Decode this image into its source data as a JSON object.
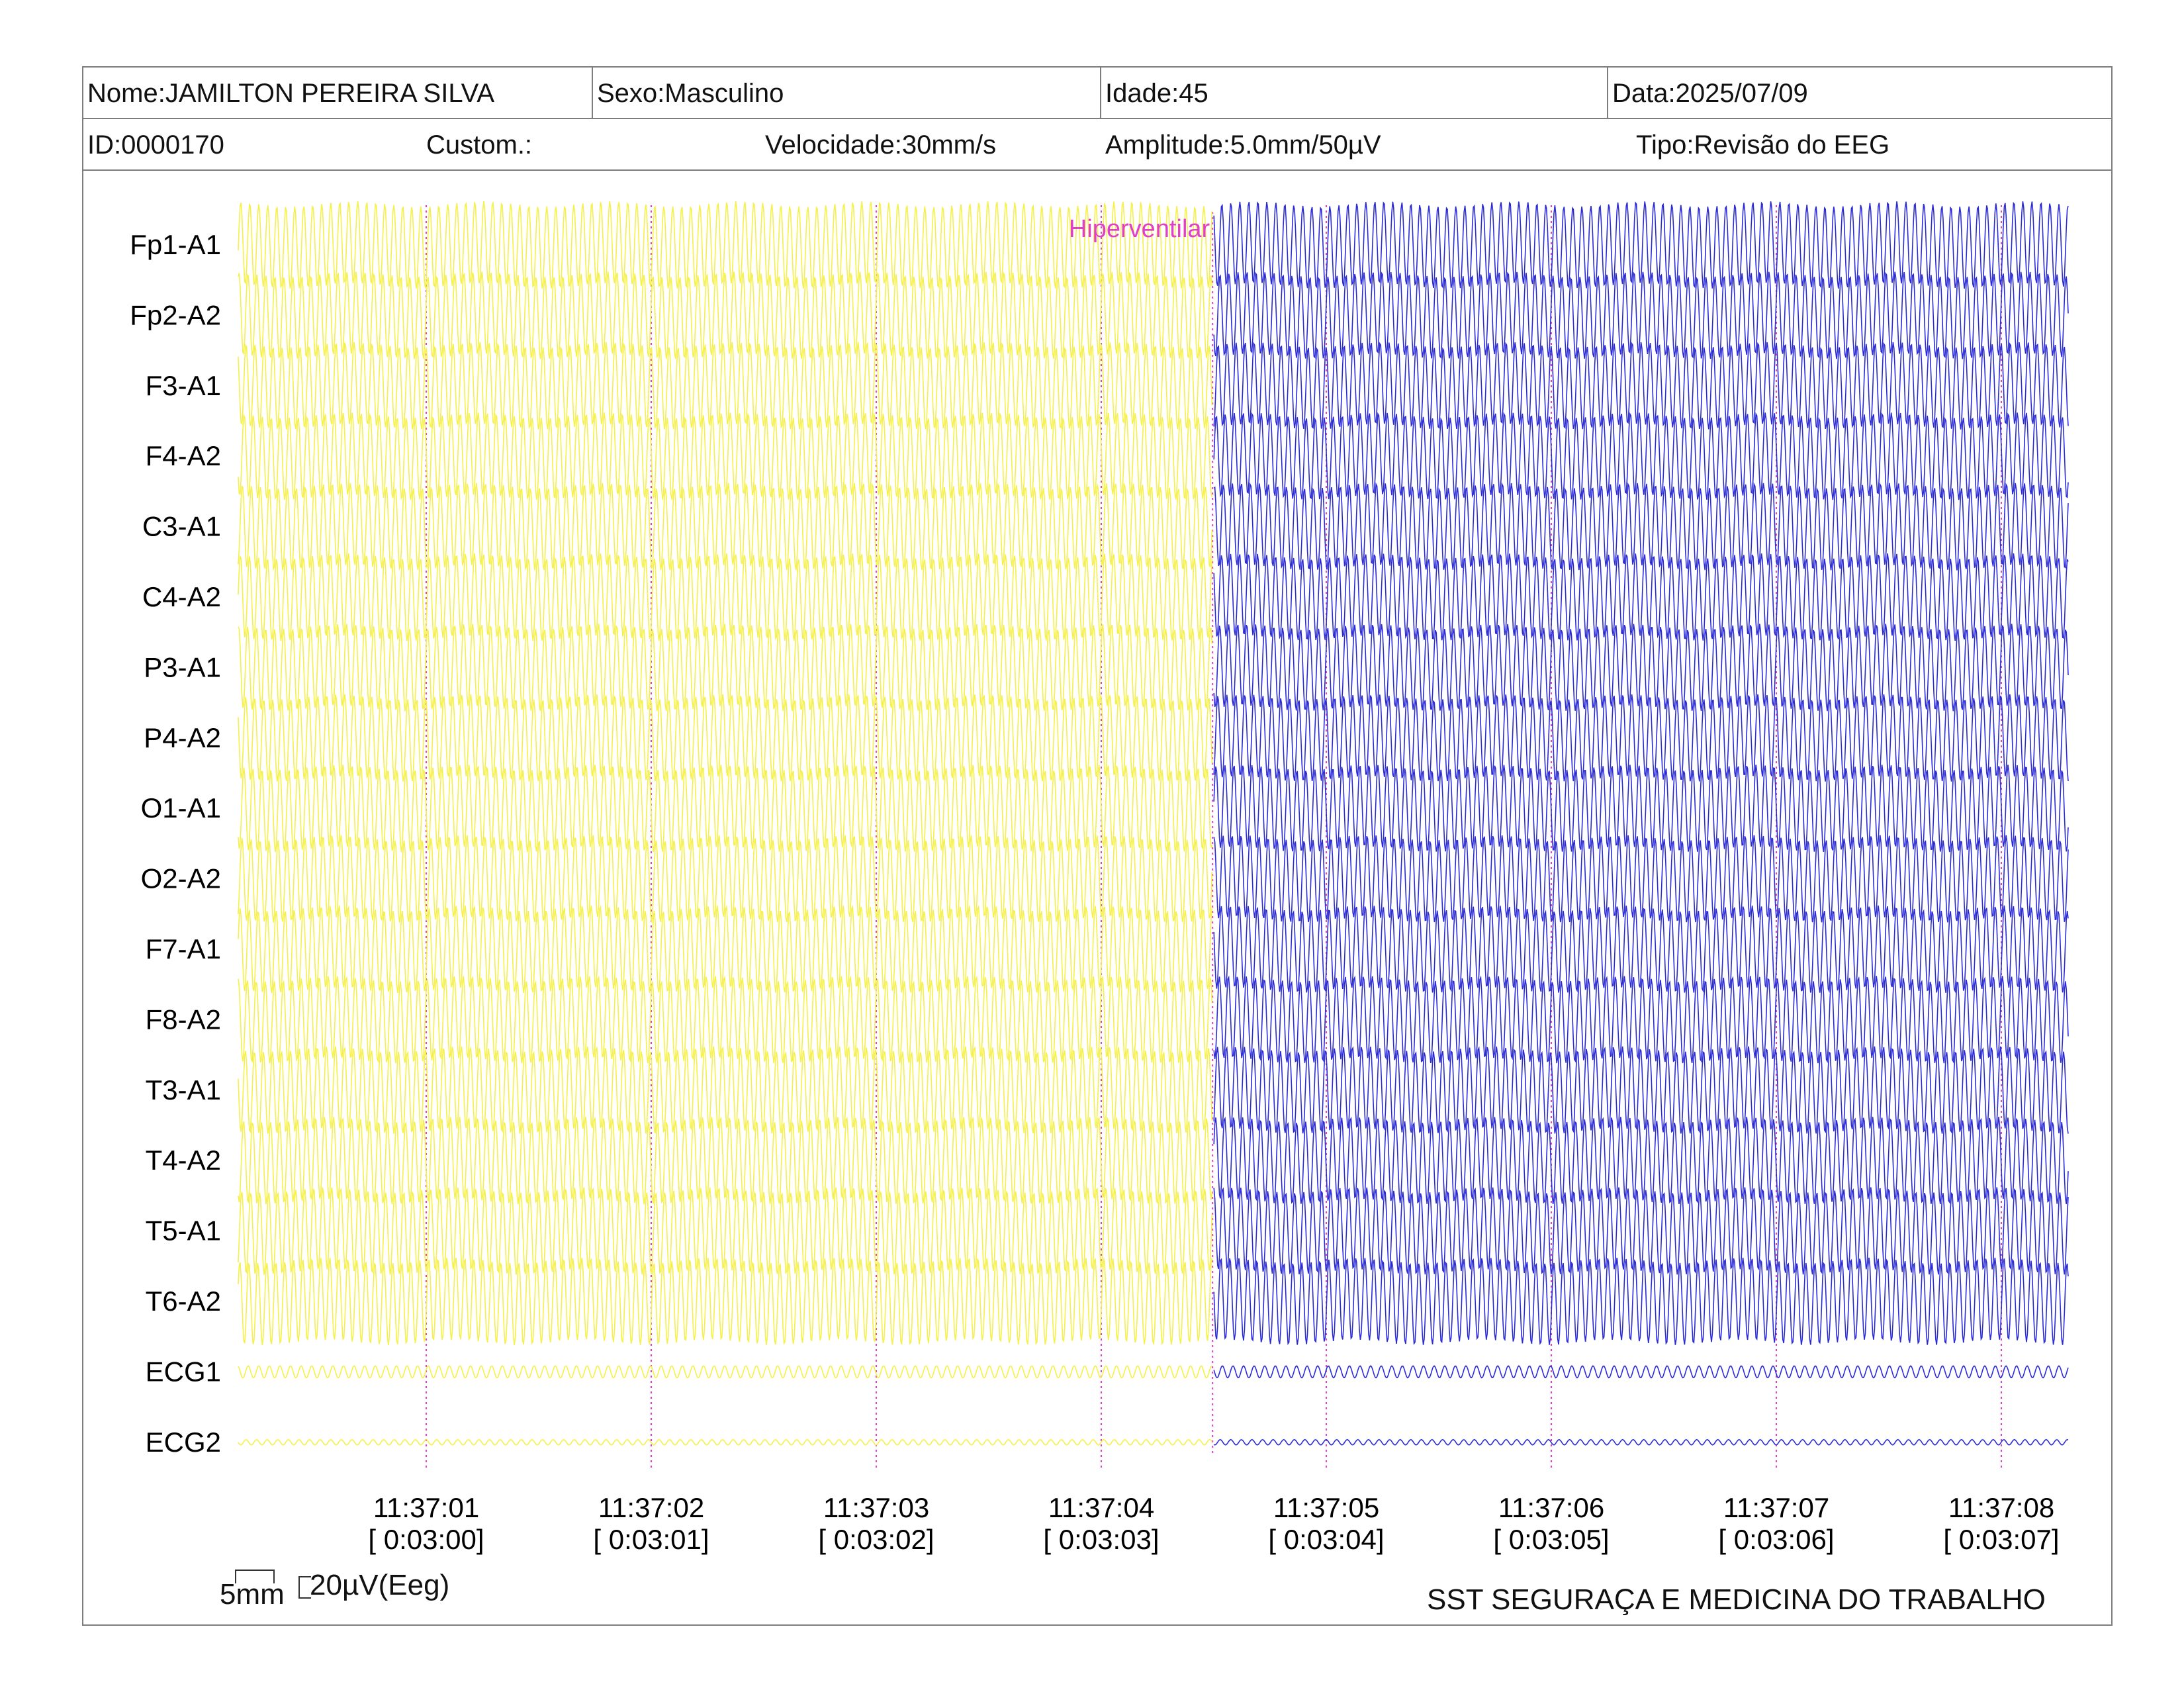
{
  "header": {
    "nome": "Nome:JAMILTON PEREIRA SILVA",
    "sexo": "Sexo:Masculino",
    "idade": "Idade:45",
    "data": "Data:2025/07/09",
    "id": "ID:0000170",
    "custom": "Custom.:",
    "velocidade": "Velocidade:30mm/s",
    "amplitude": "Amplitude:5.0mm/50µV",
    "tipo": "Tipo:Revisão do EEG"
  },
  "colors": {
    "trace_before": "#f5f04a",
    "trace_after": "#2b2bd6",
    "marker": "#e040c8",
    "grid": "#e040c8"
  },
  "chart_data": {
    "type": "line",
    "channels": [
      "Fp1-A1",
      "Fp2-A2",
      "F3-A1",
      "F4-A2",
      "C3-A1",
      "C4-A2",
      "P3-A1",
      "P4-A2",
      "O1-A1",
      "O2-A2",
      "F7-A1",
      "F8-A2",
      "T3-A1",
      "T4-A2",
      "T5-A1",
      "T6-A2",
      "ECG1",
      "ECG2"
    ],
    "time_ticks": [
      {
        "clock": "11:37:01",
        "elapsed": "[ 0:03:00]"
      },
      {
        "clock": "11:37:02",
        "elapsed": "[ 0:03:01]"
      },
      {
        "clock": "11:37:03",
        "elapsed": "[ 0:03:02]"
      },
      {
        "clock": "11:37:04",
        "elapsed": "[ 0:03:03]"
      },
      {
        "clock": "11:37:05",
        "elapsed": "[ 0:03:04]"
      },
      {
        "clock": "11:37:06",
        "elapsed": "[ 0:03:05]"
      },
      {
        "clock": "11:37:07",
        "elapsed": "[ 0:03:06]"
      },
      {
        "clock": "11:37:08",
        "elapsed": "[ 0:03:07]"
      }
    ],
    "x_seconds_range": [
      0.1,
      8.3
    ],
    "event": {
      "label": "Hiperventilar",
      "time_seconds": 4.43
    },
    "scale_bar": {
      "time": "5mm",
      "amplitude": "20µV(Eeg)"
    },
    "grid": "dotted vertical lines at each second"
  },
  "footer": {
    "institution": "SST SEGURAÇA E MEDICINA DO TRABALHO"
  }
}
